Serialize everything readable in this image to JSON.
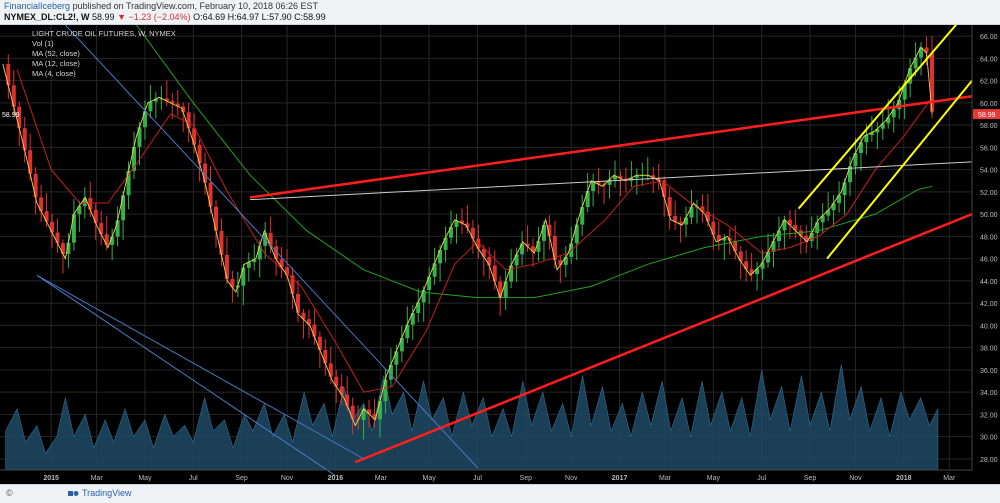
{
  "header": {
    "author": "FinancialIceberg",
    "published": "published on TradingView.com, February 10, 2018 06:26 EST",
    "symbol": "NYMEX_DL:CL2!, W",
    "last": "58.99",
    "change": "−1.23 (−2.04%)",
    "ohlc": "O:64.69 H:64.97 L:57.90 C:58.99"
  },
  "footer": {
    "copyright": "©",
    "brand": "TradingView"
  },
  "chart_data": {
    "type": "candlestick",
    "title": "LIGHT CRUDE OIL FUTURES, W, NYMEX",
    "legend": [
      "Vol (1)",
      "MA (52, close)",
      "MA (12, close)",
      "MA (4, close)"
    ],
    "last_price_label": "58.99",
    "y_ticks": [
      "66.00",
      "64.00",
      "62.00",
      "60.00",
      "58.00",
      "56.00",
      "54.00",
      "52.00",
      "50.00",
      "48.00",
      "46.00",
      "44.00",
      "42.00",
      "40.00",
      "38.00",
      "36.00",
      "34.00",
      "32.00",
      "30.00",
      "28.00"
    ],
    "ylim": [
      27,
      67
    ],
    "x_ticks": [
      {
        "label": "2015",
        "t": 2015.0
      },
      {
        "label": "Mar",
        "t": 2015.16
      },
      {
        "label": "May",
        "t": 2015.33
      },
      {
        "label": "Jul",
        "t": 2015.5
      },
      {
        "label": "Sep",
        "t": 2015.67
      },
      {
        "label": "Nov",
        "t": 2015.83
      },
      {
        "label": "2016",
        "t": 2016.0
      },
      {
        "label": "Mar",
        "t": 2016.16
      },
      {
        "label": "May",
        "t": 2016.33
      },
      {
        "label": "Jul",
        "t": 2016.5
      },
      {
        "label": "Sep",
        "t": 2016.67
      },
      {
        "label": "Nov",
        "t": 2016.83
      },
      {
        "label": "2017",
        "t": 2017.0
      },
      {
        "label": "Mar",
        "t": 2017.16
      },
      {
        "label": "May",
        "t": 2017.33
      },
      {
        "label": "Jul",
        "t": 2017.5
      },
      {
        "label": "Sep",
        "t": 2017.67
      },
      {
        "label": "Nov",
        "t": 2017.83
      },
      {
        "label": "2018",
        "t": 2018.0
      },
      {
        "label": "Mar",
        "t": 2018.16
      }
    ],
    "xlim": [
      2014.82,
      2018.24
    ],
    "close_path": [
      [
        2014.83,
        63.5
      ],
      [
        2014.9,
        56.5
      ],
      [
        2014.95,
        51.0
      ],
      [
        2015.0,
        48.5
      ],
      [
        2015.05,
        46.0
      ],
      [
        2015.08,
        50.0
      ],
      [
        2015.12,
        51.5
      ],
      [
        2015.16,
        49.0
      ],
      [
        2015.2,
        47.0
      ],
      [
        2015.23,
        49.0
      ],
      [
        2015.26,
        52.5
      ],
      [
        2015.3,
        57.0
      ],
      [
        2015.34,
        60.0
      ],
      [
        2015.38,
        60.5
      ],
      [
        2015.42,
        60.0
      ],
      [
        2015.46,
        59.5
      ],
      [
        2015.5,
        56.5
      ],
      [
        2015.54,
        53.0
      ],
      [
        2015.58,
        48.5
      ],
      [
        2015.62,
        44.0
      ],
      [
        2015.65,
        43.0
      ],
      [
        2015.68,
        45.5
      ],
      [
        2015.72,
        46.0
      ],
      [
        2015.75,
        48.5
      ],
      [
        2015.79,
        46.0
      ],
      [
        2015.83,
        44.5
      ],
      [
        2015.87,
        41.0
      ],
      [
        2015.91,
        40.0
      ],
      [
        2015.95,
        37.5
      ],
      [
        2015.99,
        35.0
      ],
      [
        2016.03,
        33.5
      ],
      [
        2016.07,
        31.0
      ],
      [
        2016.1,
        32.5
      ],
      [
        2016.14,
        31.5
      ],
      [
        2016.18,
        35.5
      ],
      [
        2016.22,
        38.0
      ],
      [
        2016.26,
        40.5
      ],
      [
        2016.3,
        42.5
      ],
      [
        2016.34,
        45.0
      ],
      [
        2016.38,
        47.5
      ],
      [
        2016.42,
        49.5
      ],
      [
        2016.46,
        49.0
      ],
      [
        2016.5,
        47.0
      ],
      [
        2016.54,
        45.5
      ],
      [
        2016.58,
        42.5
      ],
      [
        2016.62,
        45.5
      ],
      [
        2016.66,
        47.5
      ],
      [
        2016.7,
        46.5
      ],
      [
        2016.74,
        49.5
      ],
      [
        2016.78,
        45.0
      ],
      [
        2016.82,
        46.5
      ],
      [
        2016.86,
        50.0
      ],
      [
        2016.9,
        53.0
      ],
      [
        2016.94,
        52.5
      ],
      [
        2016.98,
        53.5
      ],
      [
        2017.02,
        53.0
      ],
      [
        2017.06,
        53.5
      ],
      [
        2017.1,
        53.5
      ],
      [
        2017.14,
        53.0
      ],
      [
        2017.18,
        49.5
      ],
      [
        2017.22,
        49.0
      ],
      [
        2017.26,
        51.0
      ],
      [
        2017.3,
        50.0
      ],
      [
        2017.34,
        47.5
      ],
      [
        2017.38,
        48.0
      ],
      [
        2017.42,
        46.0
      ],
      [
        2017.46,
        44.5
      ],
      [
        2017.5,
        45.5
      ],
      [
        2017.54,
        47.5
      ],
      [
        2017.58,
        49.5
      ],
      [
        2017.62,
        48.5
      ],
      [
        2017.66,
        47.5
      ],
      [
        2017.7,
        49.5
      ],
      [
        2017.74,
        50.5
      ],
      [
        2017.78,
        52.0
      ],
      [
        2017.82,
        55.0
      ],
      [
        2017.86,
        57.0
      ],
      [
        2017.9,
        57.5
      ],
      [
        2017.94,
        58.5
      ],
      [
        2017.98,
        60.0
      ],
      [
        2018.02,
        63.0
      ],
      [
        2018.06,
        65.0
      ],
      [
        2018.08,
        64.5
      ],
      [
        2018.1,
        59.0
      ]
    ],
    "ma_slow": [
      [
        2015.3,
        67.0
      ],
      [
        2015.5,
        60.0
      ],
      [
        2015.7,
        53.5
      ],
      [
        2015.9,
        48.5
      ],
      [
        2016.1,
        45.0
      ],
      [
        2016.3,
        43.0
      ],
      [
        2016.5,
        42.5
      ],
      [
        2016.7,
        42.5
      ],
      [
        2016.9,
        43.5
      ],
      [
        2017.1,
        45.5
      ],
      [
        2017.3,
        47.0
      ],
      [
        2017.5,
        48.0
      ],
      [
        2017.7,
        48.5
      ],
      [
        2017.9,
        50.0
      ],
      [
        2018.05,
        52.2
      ],
      [
        2018.1,
        52.5
      ]
    ],
    "ma_mid": [
      [
        2014.88,
        63.0
      ],
      [
        2015.0,
        54.0
      ],
      [
        2015.1,
        51.0
      ],
      [
        2015.2,
        51.0
      ],
      [
        2015.3,
        54.5
      ],
      [
        2015.42,
        59.0
      ],
      [
        2015.5,
        58.0
      ],
      [
        2015.62,
        52.0
      ],
      [
        2015.75,
        46.5
      ],
      [
        2015.88,
        43.5
      ],
      [
        2016.0,
        38.5
      ],
      [
        2016.1,
        34.0
      ],
      [
        2016.2,
        34.5
      ],
      [
        2016.32,
        39.5
      ],
      [
        2016.42,
        45.5
      ],
      [
        2016.5,
        47.5
      ],
      [
        2016.6,
        45.0
      ],
      [
        2016.7,
        45.5
      ],
      [
        2016.82,
        46.5
      ],
      [
        2016.95,
        49.5
      ],
      [
        2017.05,
        52.5
      ],
      [
        2017.15,
        53.0
      ],
      [
        2017.25,
        51.0
      ],
      [
        2017.38,
        49.0
      ],
      [
        2017.5,
        46.5
      ],
      [
        2017.6,
        47.0
      ],
      [
        2017.7,
        48.0
      ],
      [
        2017.8,
        50.0
      ],
      [
        2017.9,
        54.0
      ],
      [
        2018.0,
        57.0
      ],
      [
        2018.1,
        60.5
      ]
    ],
    "volume": [
      [
        2014.84,
        30.5
      ],
      [
        2014.88,
        32.5
      ],
      [
        2014.91,
        29.5
      ],
      [
        2014.95,
        31.0
      ],
      [
        2014.98,
        28.5
      ],
      [
        2015.02,
        30.0
      ],
      [
        2015.05,
        33.5
      ],
      [
        2015.08,
        30.0
      ],
      [
        2015.12,
        32.0
      ],
      [
        2015.15,
        29.0
      ],
      [
        2015.19,
        31.5
      ],
      [
        2015.22,
        29.5
      ],
      [
        2015.26,
        32.5
      ],
      [
        2015.29,
        30.0
      ],
      [
        2015.33,
        31.5
      ],
      [
        2015.36,
        29.0
      ],
      [
        2015.4,
        32.0
      ],
      [
        2015.43,
        30.0
      ],
      [
        2015.47,
        31.0
      ],
      [
        2015.5,
        29.5
      ],
      [
        2015.54,
        33.5
      ],
      [
        2015.57,
        30.5
      ],
      [
        2015.61,
        31.5
      ],
      [
        2015.64,
        29.0
      ],
      [
        2015.68,
        32.0
      ],
      [
        2015.71,
        30.5
      ],
      [
        2015.75,
        33.0
      ],
      [
        2015.78,
        30.0
      ],
      [
        2015.82,
        32.0
      ],
      [
        2015.85,
        29.5
      ],
      [
        2015.89,
        34.0
      ],
      [
        2015.92,
        31.0
      ],
      [
        2015.96,
        33.0
      ],
      [
        2015.99,
        30.0
      ],
      [
        2016.03,
        34.5
      ],
      [
        2016.06,
        31.5
      ],
      [
        2016.1,
        33.0
      ],
      [
        2016.13,
        30.5
      ],
      [
        2016.17,
        35.5
      ],
      [
        2016.2,
        32.0
      ],
      [
        2016.24,
        34.0
      ],
      [
        2016.27,
        30.5
      ],
      [
        2016.31,
        35.0
      ],
      [
        2016.34,
        31.5
      ],
      [
        2016.38,
        33.5
      ],
      [
        2016.41,
        30.0
      ],
      [
        2016.45,
        34.0
      ],
      [
        2016.48,
        31.0
      ],
      [
        2016.52,
        33.5
      ],
      [
        2016.55,
        30.0
      ],
      [
        2016.59,
        32.5
      ],
      [
        2016.62,
        30.0
      ],
      [
        2016.66,
        35.0
      ],
      [
        2016.69,
        31.0
      ],
      [
        2016.73,
        34.0
      ],
      [
        2016.76,
        30.5
      ],
      [
        2016.8,
        33.0
      ],
      [
        2016.83,
        30.0
      ],
      [
        2016.87,
        35.5
      ],
      [
        2016.9,
        31.0
      ],
      [
        2016.94,
        34.5
      ],
      [
        2016.97,
        30.5
      ],
      [
        2017.01,
        33.0
      ],
      [
        2017.04,
        30.0
      ],
      [
        2017.08,
        34.0
      ],
      [
        2017.11,
        31.0
      ],
      [
        2017.15,
        35.0
      ],
      [
        2017.18,
        30.5
      ],
      [
        2017.22,
        33.5
      ],
      [
        2017.25,
        30.0
      ],
      [
        2017.29,
        35.0
      ],
      [
        2017.32,
        31.0
      ],
      [
        2017.36,
        34.0
      ],
      [
        2017.39,
        30.5
      ],
      [
        2017.43,
        33.5
      ],
      [
        2017.46,
        30.0
      ],
      [
        2017.5,
        36.0
      ],
      [
        2017.53,
        31.5
      ],
      [
        2017.57,
        34.5
      ],
      [
        2017.6,
        30.5
      ],
      [
        2017.64,
        35.5
      ],
      [
        2017.67,
        31.0
      ],
      [
        2017.71,
        34.0
      ],
      [
        2017.74,
        30.5
      ],
      [
        2017.78,
        36.5
      ],
      [
        2017.81,
        31.5
      ],
      [
        2017.85,
        34.5
      ],
      [
        2017.88,
        30.5
      ],
      [
        2017.92,
        33.5
      ],
      [
        2017.95,
        30.0
      ],
      [
        2017.99,
        34.0
      ],
      [
        2018.02,
        31.5
      ],
      [
        2018.06,
        33.5
      ],
      [
        2018.09,
        31.0
      ],
      [
        2018.12,
        32.5
      ]
    ],
    "trendlines": [
      {
        "color": "#ff1e1e",
        "width": 2.5,
        "points": [
          [
            2015.7,
            51.5
          ],
          [
            2018.24,
            60.6
          ]
        ]
      },
      {
        "color": "#ff1e1e",
        "width": 2.5,
        "points": [
          [
            2016.07,
            27.7
          ],
          [
            2018.24,
            50.0
          ]
        ]
      },
      {
        "color": "#cccccc",
        "width": 1,
        "points": [
          [
            2015.7,
            51.3
          ],
          [
            2018.24,
            54.7
          ]
        ]
      },
      {
        "color": "#4a78c6",
        "width": 1,
        "points": [
          [
            2015.05,
            67.0
          ],
          [
            2016.5,
            27.2
          ]
        ]
      },
      {
        "color": "#4a78c6",
        "width": 1,
        "points": [
          [
            2014.95,
            44.5
          ],
          [
            2016.1,
            28.0
          ]
        ]
      },
      {
        "color": "#4a78c6",
        "width": 1,
        "points": [
          [
            2014.95,
            44.5
          ],
          [
            2016.0,
            26.5
          ]
        ]
      },
      {
        "color": "#ffff00",
        "width": 2,
        "points": [
          [
            2017.63,
            50.5
          ],
          [
            2018.2,
            67.5
          ]
        ]
      },
      {
        "color": "#ffff00",
        "width": 2,
        "points": [
          [
            2017.73,
            46.0
          ],
          [
            2018.24,
            62.0
          ]
        ]
      }
    ]
  }
}
